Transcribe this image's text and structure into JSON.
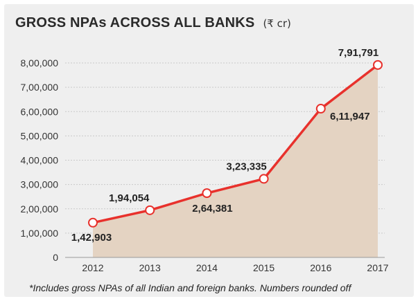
{
  "header": {
    "title": "GROSS NPAs ACROSS ALL BANKS",
    "unit": "(₹ cr)"
  },
  "footnote": "*Includes gross NPAs of all Indian and foreign banks. Numbers rounded off",
  "colors": {
    "line": "#e8312c",
    "area": "#e4d3c2",
    "marker_fill": "#ffffff",
    "grid": "#c9c9c9",
    "text": "#333333"
  },
  "chart_data": {
    "type": "area",
    "title": "GROSS NPAs ACROSS ALL BANKS",
    "unit": "(₹ cr)",
    "xlabel": "",
    "ylabel": "",
    "grid": true,
    "ylim": [
      0,
      800000
    ],
    "yticks": [
      0,
      100000,
      200000,
      300000,
      400000,
      500000,
      600000,
      700000,
      800000
    ],
    "ytick_labels": [
      "0",
      "1,00,000",
      "2,00,000",
      "3,00,000",
      "4,00,000",
      "5,00,000",
      "6,00,000",
      "7,00,000",
      "8,00,000"
    ],
    "categories": [
      "2012",
      "2013",
      "2014",
      "2015",
      "2016",
      "2017"
    ],
    "values": [
      142903,
      194054,
      264381,
      323335,
      611947,
      791791
    ],
    "data_labels": [
      "1,42,903",
      "1,94,054",
      "2,64,381",
      "3,23,335",
      "6,11,947",
      "7,91,791"
    ],
    "label_positions": [
      "below",
      "above",
      "below",
      "above",
      "below",
      "above"
    ]
  }
}
